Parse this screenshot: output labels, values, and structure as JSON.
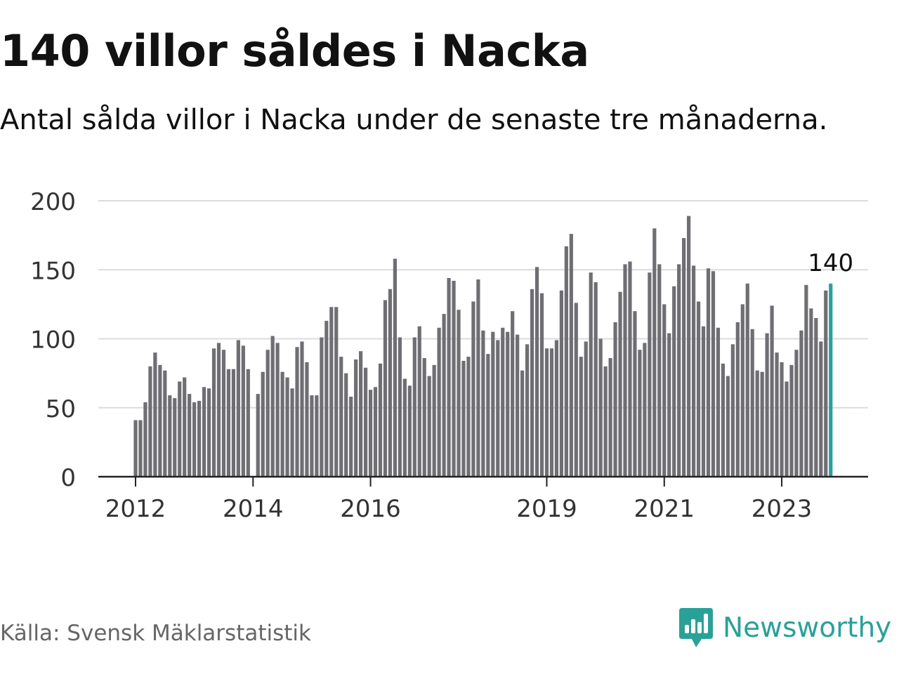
{
  "title": "140 villor såldes i Nacka",
  "subtitle": "Antal sålda villor i Nacka under de senaste tre månaderna.",
  "source": "Källa: Svensk Mäklarstatistik",
  "brand": {
    "name": "Newsworthy",
    "icon": "newsworthy-logo-icon"
  },
  "colors": {
    "bar": "#6f6e73",
    "highlight": "#2aa198",
    "grid": "#dcdcdc",
    "axis": "#222222"
  },
  "chart_data": {
    "type": "bar",
    "title": "140 villor såldes i Nacka",
    "xlabel": "",
    "ylabel": "",
    "ylim": [
      0,
      200
    ],
    "yticks": [
      0,
      50,
      100,
      150,
      200
    ],
    "xtick_labels": [
      "2012",
      "2014",
      "2016",
      "2019",
      "2021",
      "2023"
    ],
    "xtick_indices": [
      0,
      24,
      48,
      84,
      108,
      132
    ],
    "grid": true,
    "highlight_label": "140",
    "period": "monthly (rolling 3-month sum), Jan 2012 – Dec 2023",
    "values": [
      41,
      41,
      54,
      80,
      90,
      81,
      77,
      59,
      57,
      69,
      72,
      60,
      54,
      55,
      65,
      64,
      93,
      97,
      92,
      78,
      78,
      99,
      95,
      78,
      0,
      60,
      76,
      92,
      102,
      97,
      76,
      72,
      64,
      94,
      98,
      83,
      59,
      59,
      101,
      113,
      123,
      123,
      87,
      75,
      58,
      85,
      91,
      79,
      63,
      65,
      82,
      128,
      136,
      158,
      101,
      71,
      66,
      101,
      109,
      86,
      73,
      81,
      108,
      118,
      144,
      142,
      121,
      84,
      87,
      127,
      143,
      106,
      89,
      105,
      99,
      108,
      105,
      120,
      103,
      77,
      96,
      136,
      152,
      133,
      93,
      93,
      99,
      135,
      167,
      176,
      126,
      87,
      98,
      148,
      141,
      100,
      80,
      86,
      112,
      134,
      154,
      156,
      120,
      92,
      97,
      148,
      180,
      154,
      125,
      104,
      138,
      154,
      173,
      189,
      153,
      127,
      109,
      151,
      149,
      108,
      82,
      73,
      96,
      112,
      125,
      140,
      107,
      77,
      76,
      104,
      124,
      90,
      83,
      69,
      81,
      92,
      106,
      139,
      122,
      115,
      98,
      135,
      140
    ]
  }
}
